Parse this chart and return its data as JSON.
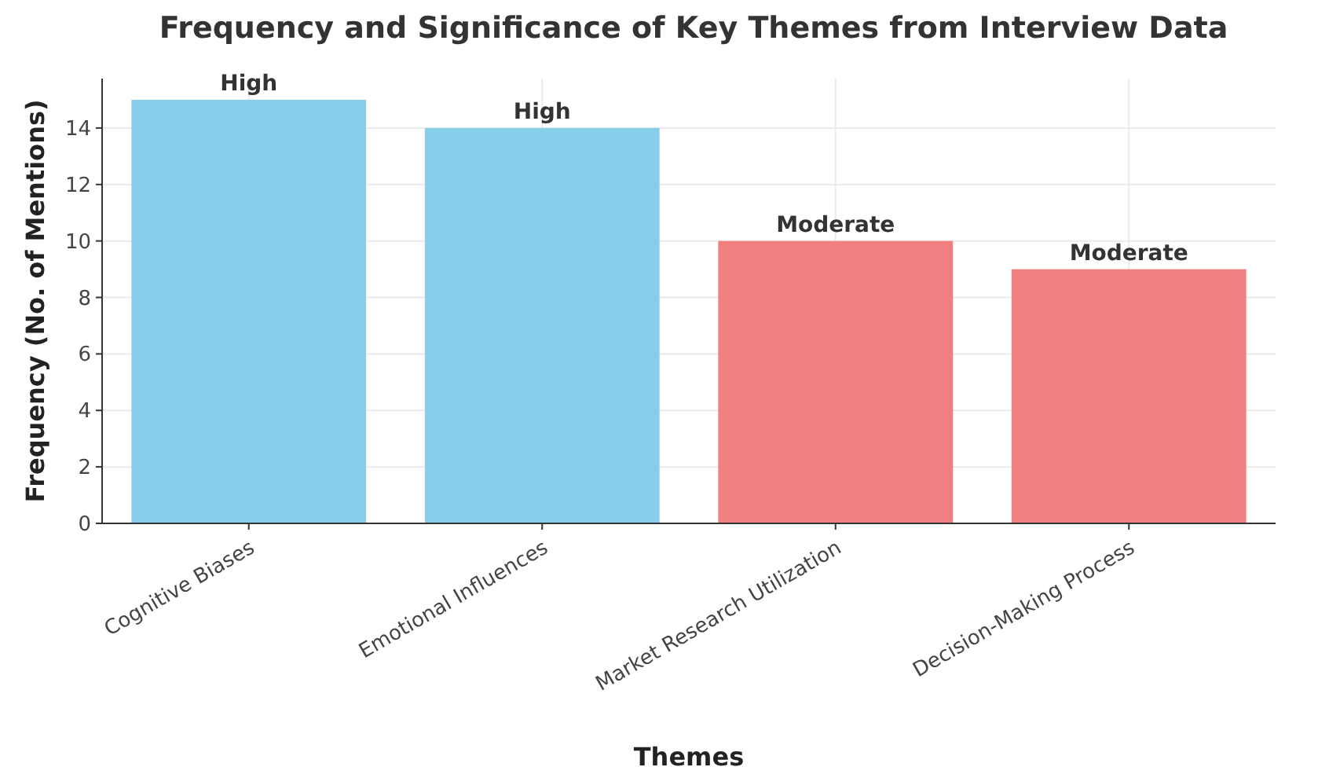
{
  "chart_data": {
    "type": "bar",
    "title": "Frequency and Significance of Key Themes from Interview Data",
    "xlabel": "Themes",
    "ylabel": "Frequency (No. of Mentions)",
    "categories": [
      "Cognitive Biases",
      "Emotional Influences",
      "Market Research Utilization",
      "Decision-Making Process"
    ],
    "values": [
      15,
      14,
      10,
      9
    ],
    "colors": [
      "#87ceeb",
      "#87ceeb",
      "#f08080",
      "#f08080"
    ],
    "value_labels": [
      "High",
      "High",
      "Moderate",
      "Moderate"
    ],
    "ylim": [
      0,
      15.75
    ],
    "yticks": [
      0,
      2,
      4,
      6,
      8,
      10,
      12,
      14
    ],
    "grid": true
  }
}
